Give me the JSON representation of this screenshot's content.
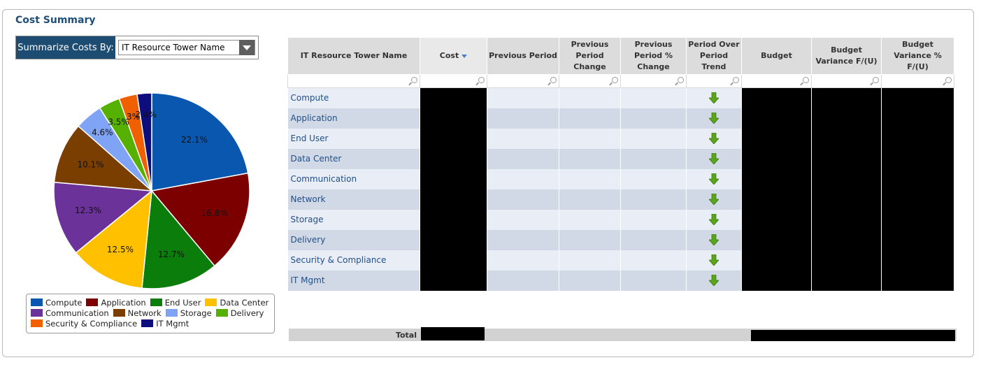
{
  "title": "Cost Summary",
  "summarize": {
    "label": "Summarize Costs By:",
    "selected": "IT Resource Tower Name"
  },
  "chart_data": {
    "type": "pie",
    "categories": [
      "Compute",
      "Application",
      "End User",
      "Data Center",
      "Communication",
      "Network",
      "Storage",
      "Delivery",
      "Security & Compliance",
      "IT Mgmt"
    ],
    "values": [
      22.1,
      16.8,
      12.7,
      12.5,
      12.3,
      10.1,
      4.6,
      3.5,
      3,
      2.4
    ],
    "labels": [
      "22.1%",
      "16.8%",
      "12.7%",
      "12.5%",
      "12.3%",
      "10.1%",
      "4.6%",
      "3.5%",
      "3%",
      "2.4%"
    ],
    "colors": [
      "#0a57b0",
      "#7d0000",
      "#0a7d0a",
      "#ffc000",
      "#6b3399",
      "#7a3f00",
      "#7fa3f5",
      "#55b000",
      "#f06000",
      "#0d0d7d"
    ],
    "legend": "bottom"
  },
  "legend_rows": [
    [
      0,
      1,
      2,
      3
    ],
    [
      4,
      5,
      6,
      7
    ],
    [
      8,
      9
    ]
  ],
  "grid": {
    "columns": [
      "IT Resource Tower Name",
      "Cost",
      "Previous Period",
      "Previous Period Change",
      "Previous Period % Change",
      "Period Over Period Trend",
      "Budget",
      "Budget Variance F/(U)",
      "Budget Variance % F/(U)"
    ],
    "rows": [
      "Compute",
      "Application",
      "End User",
      "Data Center",
      "Communication",
      "Network",
      "Storage",
      "Delivery",
      "Security & Compliance",
      "IT Mgmt"
    ],
    "trend_icon": "down-arrow-icon",
    "trend_color": "#5aa51c"
  },
  "total_label": "Total"
}
